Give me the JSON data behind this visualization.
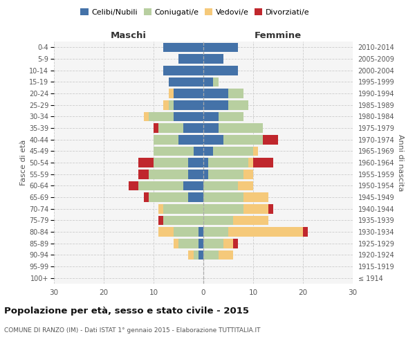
{
  "age_groups": [
    "100+",
    "95-99",
    "90-94",
    "85-89",
    "80-84",
    "75-79",
    "70-74",
    "65-69",
    "60-64",
    "55-59",
    "50-54",
    "45-49",
    "40-44",
    "35-39",
    "30-34",
    "25-29",
    "20-24",
    "15-19",
    "10-14",
    "5-9",
    "0-4"
  ],
  "birth_years": [
    "≤ 1914",
    "1915-1919",
    "1920-1924",
    "1925-1929",
    "1930-1934",
    "1935-1939",
    "1940-1944",
    "1945-1949",
    "1950-1954",
    "1955-1959",
    "1960-1964",
    "1965-1969",
    "1970-1974",
    "1975-1979",
    "1980-1984",
    "1985-1989",
    "1990-1994",
    "1995-1999",
    "2000-2004",
    "2005-2009",
    "2010-2014"
  ],
  "male": {
    "celibi": [
      0,
      0,
      1,
      1,
      1,
      0,
      0,
      3,
      4,
      3,
      3,
      2,
      5,
      4,
      6,
      6,
      6,
      7,
      8,
      5,
      8
    ],
    "coniugati": [
      0,
      0,
      1,
      4,
      5,
      8,
      8,
      8,
      9,
      8,
      7,
      8,
      5,
      5,
      5,
      1,
      0,
      0,
      0,
      0,
      0
    ],
    "vedovi": [
      0,
      0,
      1,
      1,
      3,
      0,
      1,
      0,
      0,
      0,
      0,
      0,
      0,
      0,
      1,
      1,
      1,
      0,
      0,
      0,
      0
    ],
    "divorziati": [
      0,
      0,
      0,
      0,
      0,
      1,
      0,
      1,
      2,
      2,
      3,
      0,
      0,
      1,
      0,
      0,
      0,
      0,
      0,
      0,
      0
    ]
  },
  "female": {
    "nubili": [
      0,
      0,
      0,
      0,
      0,
      0,
      0,
      0,
      0,
      1,
      1,
      2,
      4,
      3,
      3,
      5,
      5,
      2,
      7,
      4,
      7
    ],
    "coniugate": [
      0,
      0,
      3,
      4,
      5,
      6,
      8,
      8,
      7,
      7,
      8,
      8,
      8,
      9,
      5,
      4,
      3,
      1,
      0,
      0,
      0
    ],
    "vedove": [
      0,
      0,
      3,
      2,
      15,
      7,
      5,
      5,
      3,
      2,
      1,
      1,
      0,
      0,
      0,
      0,
      0,
      0,
      0,
      0,
      0
    ],
    "divorziate": [
      0,
      0,
      0,
      1,
      1,
      0,
      1,
      0,
      0,
      0,
      4,
      0,
      3,
      0,
      0,
      0,
      0,
      0,
      0,
      0,
      0
    ]
  },
  "colors": {
    "celibi": "#4472a8",
    "coniugati": "#b8cfa0",
    "vedovi": "#f5c97a",
    "divorziati": "#c0272d"
  },
  "xlim": 30,
  "title": "Popolazione per età, sesso e stato civile - 2015",
  "subtitle": "COMUNE DI RANZO (IM) - Dati ISTAT 1° gennaio 2015 - Elaborazione TUTTITALIA.IT",
  "ylabel_left": "Fasce di età",
  "ylabel_right": "Anni di nascita",
  "xlabel_left": "Maschi",
  "xlabel_right": "Femmine",
  "legend_labels": [
    "Celibi/Nubili",
    "Coniugati/e",
    "Vedovi/e",
    "Divorziati/e"
  ],
  "bg_color": "#f5f5f5",
  "grid_color": "#cccccc"
}
